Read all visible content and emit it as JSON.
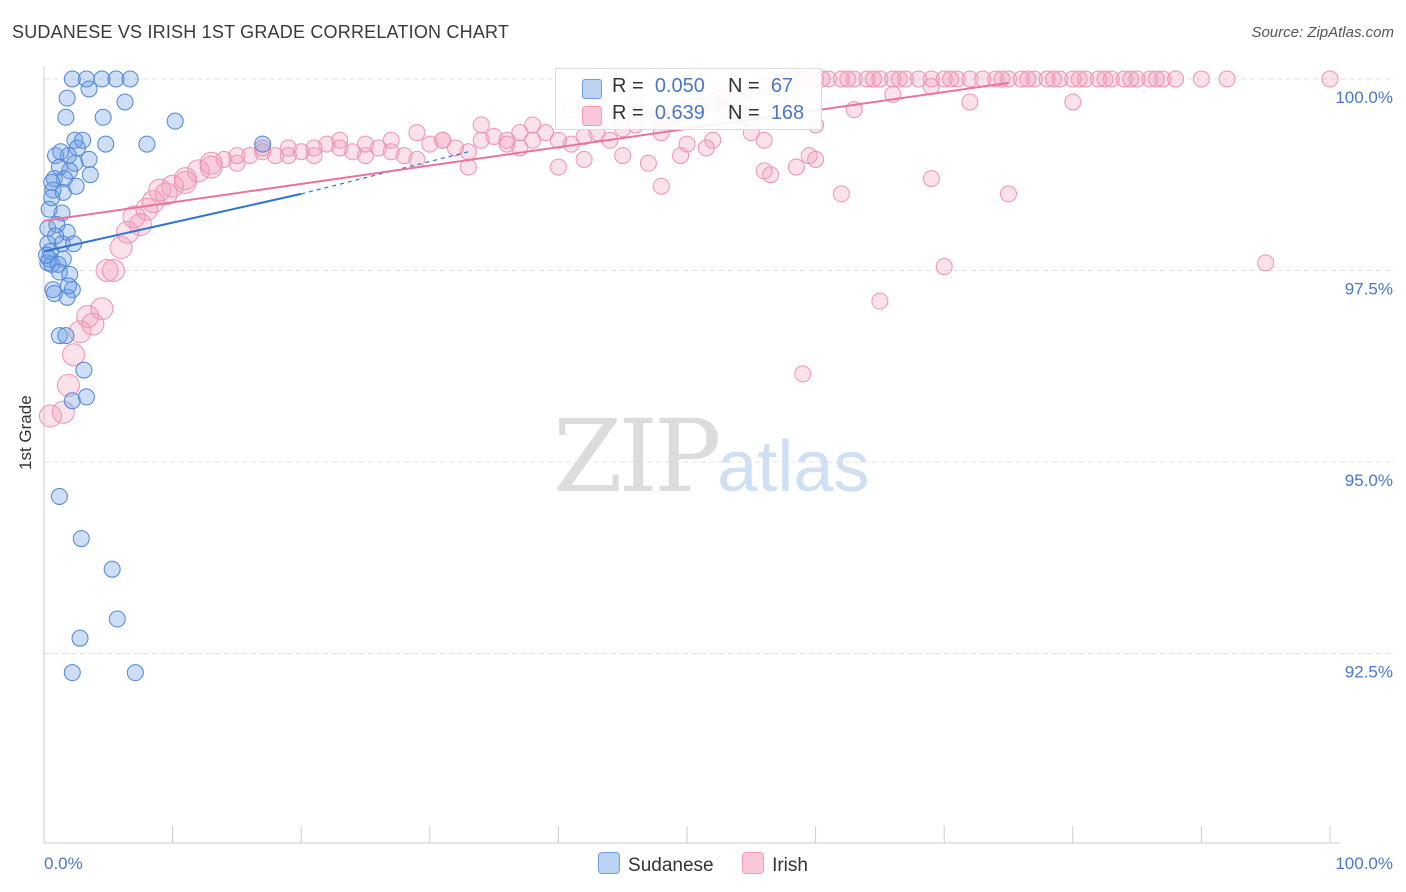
{
  "title": "SUDANESE VS IRISH 1ST GRADE CORRELATION CHART",
  "source": "Source: ZipAtlas.com",
  "watermark": {
    "zip": "ZIP",
    "atlas": "atlas"
  },
  "colors": {
    "sudanese": "#6fa0e4",
    "irish": "#f29ab8",
    "sudanese_line": "#2f74d0",
    "irish_line": "#e8749c",
    "tick_label": "#4a78c8"
  },
  "legend_top": {
    "rows": [
      {
        "r_label": "R =",
        "r_value": "0.050",
        "n_label": "N =",
        "n_value": "67"
      },
      {
        "r_label": "R =",
        "r_value": "0.639",
        "n_label": "N =",
        "n_value": "168"
      }
    ]
  },
  "chart_data": {
    "type": "scatter",
    "title": "SUDANESE VS IRISH 1ST GRADE CORRELATION CHART",
    "xlabel": "",
    "ylabel": "1st Grade",
    "xlim": [
      0,
      100
    ],
    "ylim": [
      90.2,
      100.2
    ],
    "x_tick_labels": [
      "0.0%",
      "100.0%"
    ],
    "y_ticks": [
      100.0,
      97.5,
      95.0,
      92.5
    ],
    "y_tick_labels": [
      "100.0%",
      "97.5%",
      "95.0%",
      "92.5%"
    ],
    "grid": "horizontal dashed",
    "legend_position": "bottom-center",
    "series": [
      {
        "name": "Sudanese",
        "r": 0.05,
        "n": 67,
        "trend": {
          "x": [
            0,
            20
          ],
          "y": [
            97.75,
            98.5
          ],
          "dashed_extension_to": [
            33,
            99.05
          ]
        },
        "points": [
          [
            2.2,
            100
          ],
          [
            3.3,
            100
          ],
          [
            4.5,
            100
          ],
          [
            5.6,
            100
          ],
          [
            6.7,
            100
          ],
          [
            1.8,
            99.75
          ],
          [
            3.5,
            99.87
          ],
          [
            6.3,
            99.7
          ],
          [
            1.7,
            99.5
          ],
          [
            4.6,
            99.5
          ],
          [
            10.2,
            99.45
          ],
          [
            2.4,
            99.2
          ],
          [
            2.6,
            99.1
          ],
          [
            3.0,
            99.2
          ],
          [
            4.8,
            99.15
          ],
          [
            8.0,
            99.15
          ],
          [
            0.9,
            99.0
          ],
          [
            1.9,
            99.0
          ],
          [
            2.4,
            98.9
          ],
          [
            3.5,
            98.95
          ],
          [
            1.2,
            98.85
          ],
          [
            2.0,
            98.8
          ],
          [
            3.6,
            98.75
          ],
          [
            0.8,
            98.7
          ],
          [
            1.6,
            98.7
          ],
          [
            0.7,
            98.55
          ],
          [
            1.5,
            98.52
          ],
          [
            0.6,
            98.45
          ],
          [
            0.4,
            98.3
          ],
          [
            1.4,
            98.25
          ],
          [
            0.3,
            98.05
          ],
          [
            1.8,
            98.0
          ],
          [
            0.3,
            97.85
          ],
          [
            1.4,
            97.85
          ],
          [
            2.3,
            97.85
          ],
          [
            0.4,
            97.65
          ],
          [
            1.5,
            97.65
          ],
          [
            0.3,
            97.6
          ],
          [
            0.6,
            97.58
          ],
          [
            1.1,
            97.58
          ],
          [
            1.2,
            97.48
          ],
          [
            2.0,
            97.45
          ],
          [
            0.7,
            97.25
          ],
          [
            2.2,
            97.25
          ],
          [
            0.8,
            97.2
          ],
          [
            1.8,
            97.15
          ],
          [
            1.2,
            96.65
          ],
          [
            1.7,
            96.65
          ],
          [
            3.1,
            96.2
          ],
          [
            2.2,
            95.8
          ],
          [
            3.3,
            95.85
          ],
          [
            1.2,
            94.55
          ],
          [
            2.9,
            94.0
          ],
          [
            5.3,
            93.6
          ],
          [
            5.7,
            92.95
          ],
          [
            2.8,
            92.7
          ],
          [
            2.2,
            92.25
          ],
          [
            7.1,
            92.25
          ],
          [
            17.0,
            99.15
          ],
          [
            0.5,
            97.75
          ],
          [
            1.0,
            98.1
          ],
          [
            0.2,
            97.7
          ],
          [
            0.9,
            97.95
          ],
          [
            1.3,
            99.05
          ],
          [
            0.6,
            98.65
          ],
          [
            1.9,
            97.3
          ],
          [
            2.5,
            98.6
          ]
        ]
      },
      {
        "name": "Irish",
        "r": 0.639,
        "n": 168,
        "trend": {
          "x": [
            0,
            75
          ],
          "y": [
            98.15,
            99.95
          ]
        },
        "points": [
          [
            0.5,
            95.6
          ],
          [
            1.5,
            95.65
          ],
          [
            1.9,
            96.0
          ],
          [
            2.3,
            96.4
          ],
          [
            2.8,
            96.7
          ],
          [
            3.4,
            96.9
          ],
          [
            3.8,
            96.8
          ],
          [
            4.5,
            97.0
          ],
          [
            4.9,
            97.5
          ],
          [
            5.4,
            97.5
          ],
          [
            6.0,
            97.8
          ],
          [
            6.5,
            98.0
          ],
          [
            7.0,
            98.2
          ],
          [
            7.5,
            98.1
          ],
          [
            8.5,
            98.4
          ],
          [
            9.0,
            98.55
          ],
          [
            10.0,
            98.6
          ],
          [
            11.0,
            98.7
          ],
          [
            12.0,
            98.8
          ],
          [
            13.0,
            98.9
          ],
          [
            14.0,
            98.95
          ],
          [
            15.0,
            98.9
          ],
          [
            16.0,
            99.0
          ],
          [
            17.0,
            99.05
          ],
          [
            18.0,
            99.0
          ],
          [
            19.0,
            99.1
          ],
          [
            20.0,
            99.05
          ],
          [
            21.0,
            99.0
          ],
          [
            22.0,
            99.15
          ],
          [
            23.0,
            99.1
          ],
          [
            24.0,
            99.05
          ],
          [
            25.0,
            99.0
          ],
          [
            26.0,
            99.1
          ],
          [
            27.0,
            99.05
          ],
          [
            28.0,
            99.0
          ],
          [
            29.0,
            98.95
          ],
          [
            30.0,
            99.15
          ],
          [
            31.0,
            99.2
          ],
          [
            32.0,
            99.1
          ],
          [
            33.0,
            99.05
          ],
          [
            34.0,
            99.2
          ],
          [
            35.0,
            99.25
          ],
          [
            36.0,
            99.15
          ],
          [
            37.0,
            99.1
          ],
          [
            38.0,
            99.2
          ],
          [
            39.0,
            99.3
          ],
          [
            40.0,
            99.2
          ],
          [
            41.0,
            99.15
          ],
          [
            42.0,
            99.25
          ],
          [
            43.0,
            99.3
          ],
          [
            44.0,
            99.2
          ],
          [
            45.0,
            99.35
          ],
          [
            46.0,
            99.4
          ],
          [
            47.0,
            99.45
          ],
          [
            48.0,
            99.5
          ],
          [
            49.0,
            99.55
          ],
          [
            50.0,
            99.6
          ],
          [
            51.0,
            99.65
          ],
          [
            52.0,
            99.7
          ],
          [
            53.0,
            99.75
          ],
          [
            54.0,
            99.8
          ],
          [
            55.0,
            99.85
          ],
          [
            56.0,
            99.9
          ],
          [
            57.0,
            99.95
          ],
          [
            59.0,
            100
          ],
          [
            60.0,
            100
          ],
          [
            61.0,
            100
          ],
          [
            62.0,
            100
          ],
          [
            63.0,
            100
          ],
          [
            64.0,
            100
          ],
          [
            65.0,
            100
          ],
          [
            66.0,
            100
          ],
          [
            67.0,
            100
          ],
          [
            68.0,
            100
          ],
          [
            69.0,
            100
          ],
          [
            70.0,
            100
          ],
          [
            71.0,
            100
          ],
          [
            72.0,
            100
          ],
          [
            73.0,
            100
          ],
          [
            74.0,
            100
          ],
          [
            75.0,
            100
          ],
          [
            76.0,
            100
          ],
          [
            77.0,
            100
          ],
          [
            78.0,
            100
          ],
          [
            79.0,
            100
          ],
          [
            80.0,
            100
          ],
          [
            81.0,
            100
          ],
          [
            82.0,
            100
          ],
          [
            83.0,
            100
          ],
          [
            84.0,
            100
          ],
          [
            85.0,
            100
          ],
          [
            86.0,
            100
          ],
          [
            87.0,
            100
          ],
          [
            88.0,
            100
          ],
          [
            90.0,
            100
          ],
          [
            92.0,
            100
          ],
          [
            100.0,
            100
          ],
          [
            58.0,
            100
          ],
          [
            60.5,
            100
          ],
          [
            62.5,
            100
          ],
          [
            64.5,
            100
          ],
          [
            66.5,
            100
          ],
          [
            70.5,
            100
          ],
          [
            74.5,
            100
          ],
          [
            76.5,
            100
          ],
          [
            78.5,
            100
          ],
          [
            80.5,
            100
          ],
          [
            82.5,
            100
          ],
          [
            84.5,
            100
          ],
          [
            86.5,
            100
          ],
          [
            45.0,
            99.0
          ],
          [
            48.0,
            99.3
          ],
          [
            50.0,
            99.15
          ],
          [
            52.0,
            99.2
          ],
          [
            55.0,
            99.3
          ],
          [
            47.0,
            98.9
          ],
          [
            42.0,
            98.95
          ],
          [
            40.0,
            98.85
          ],
          [
            33.0,
            98.85
          ],
          [
            36.0,
            99.2
          ],
          [
            38.0,
            99.4
          ],
          [
            44.0,
            99.45
          ],
          [
            46.0,
            99.7
          ],
          [
            41.0,
            99.6
          ],
          [
            37.0,
            99.3
          ],
          [
            34.0,
            99.4
          ],
          [
            31.0,
            99.2
          ],
          [
            29.0,
            99.3
          ],
          [
            27.0,
            99.2
          ],
          [
            25.0,
            99.15
          ],
          [
            23.0,
            99.2
          ],
          [
            21.0,
            99.1
          ],
          [
            19.0,
            99.0
          ],
          [
            17.0,
            99.1
          ],
          [
            15.0,
            99.0
          ],
          [
            13.0,
            98.85
          ],
          [
            11.0,
            98.65
          ],
          [
            9.5,
            98.5
          ],
          [
            8.0,
            98.3
          ],
          [
            56.0,
            99.2
          ],
          [
            60.0,
            99.4
          ],
          [
            63.0,
            99.6
          ],
          [
            66.0,
            99.8
          ],
          [
            69.0,
            99.9
          ],
          [
            52.5,
            99.75
          ],
          [
            57.5,
            99.6
          ],
          [
            54.5,
            99.5
          ],
          [
            49.0,
            99.5
          ],
          [
            51.5,
            99.1
          ],
          [
            59.5,
            99.0
          ],
          [
            53.0,
            99.6
          ],
          [
            56.5,
            98.75
          ],
          [
            58.5,
            98.85
          ],
          [
            60.0,
            98.95
          ],
          [
            72.0,
            99.7
          ],
          [
            80.0,
            99.7
          ],
          [
            95.0,
            97.6
          ],
          [
            70.0,
            97.55
          ],
          [
            65.0,
            97.1
          ],
          [
            62.0,
            98.5
          ],
          [
            56.0,
            98.8
          ],
          [
            69.0,
            98.7
          ],
          [
            75.0,
            98.5
          ],
          [
            59.0,
            96.15
          ],
          [
            48.0,
            98.6
          ],
          [
            49.5,
            99.0
          ]
        ]
      }
    ]
  }
}
